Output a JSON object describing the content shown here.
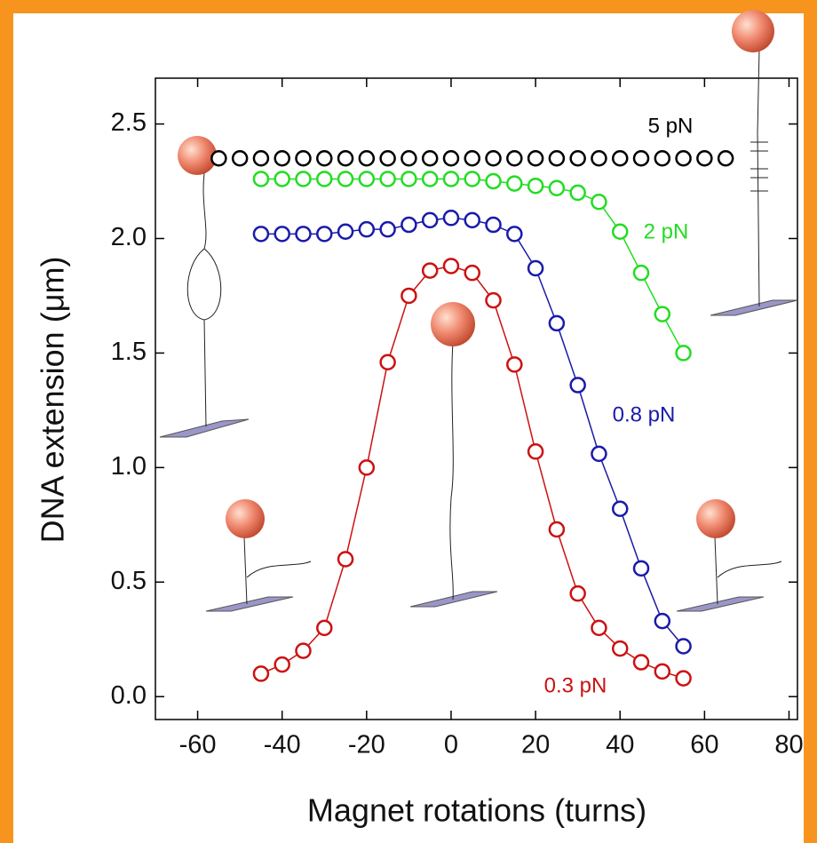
{
  "chart_data": {
    "type": "line",
    "xlabel": "Magnet rotations (turns)",
    "ylabel": "DNA extension (μm)",
    "xlim": [
      -70,
      82
    ],
    "ylim": [
      -0.1,
      2.7
    ],
    "xticks": [
      -60,
      -40,
      -20,
      0,
      20,
      40,
      60,
      80
    ],
    "yticks": [
      {
        "value": 0,
        "label": "0.0"
      },
      0.5,
      {
        "value": 1,
        "label": "1.0"
      },
      1.5,
      {
        "value": 2,
        "label": "2.0"
      },
      2.5
    ],
    "series": [
      {
        "name": "5 pN",
        "color": "#000000",
        "lines": false,
        "x": [
          -55,
          -50,
          -45,
          -40,
          -35,
          -30,
          -25,
          -20,
          -15,
          -10,
          -5,
          0,
          5,
          10,
          15,
          20,
          25,
          30,
          35,
          40,
          45,
          50,
          55,
          60,
          65
        ],
        "values": [
          2.35,
          2.35,
          2.35,
          2.35,
          2.35,
          2.35,
          2.35,
          2.35,
          2.35,
          2.35,
          2.35,
          2.35,
          2.35,
          2.35,
          2.35,
          2.35,
          2.35,
          2.35,
          2.35,
          2.35,
          2.35,
          2.35,
          2.35,
          2.35,
          2.35
        ]
      },
      {
        "name": "2 pN",
        "color": "#22dd22",
        "lines": true,
        "x": [
          -45,
          -40,
          -35,
          -30,
          -25,
          -20,
          -15,
          -10,
          -5,
          0,
          5,
          10,
          15,
          20,
          25,
          30,
          35,
          40,
          45,
          50,
          55
        ],
        "values": [
          2.26,
          2.26,
          2.26,
          2.26,
          2.26,
          2.26,
          2.26,
          2.26,
          2.26,
          2.26,
          2.26,
          2.25,
          2.24,
          2.23,
          2.22,
          2.2,
          2.16,
          2.03,
          1.85,
          1.67,
          1.5
        ]
      },
      {
        "name": "0.8 pN",
        "color": "#1a1aaa",
        "lines": true,
        "x": [
          -45,
          -40,
          -35,
          -30,
          -25,
          -20,
          -15,
          -10,
          -5,
          0,
          5,
          10,
          15,
          20,
          25,
          30,
          35,
          40,
          45,
          50,
          55
        ],
        "values": [
          2.02,
          2.02,
          2.02,
          2.02,
          2.03,
          2.04,
          2.04,
          2.06,
          2.08,
          2.09,
          2.08,
          2.06,
          2.02,
          1.87,
          1.63,
          1.36,
          1.06,
          0.82,
          0.56,
          0.33,
          0.22
        ]
      },
      {
        "name": "0.3 pN",
        "color": "#cc1111",
        "lines": true,
        "x": [
          -45,
          -40,
          -35,
          -30,
          -25,
          -20,
          -15,
          -10,
          -5,
          0,
          5,
          10,
          15,
          20,
          25,
          30,
          35,
          40,
          45,
          50,
          55
        ],
        "values": [
          0.1,
          0.14,
          0.2,
          0.3,
          0.6,
          1.0,
          1.46,
          1.75,
          1.86,
          1.88,
          1.85,
          1.73,
          1.45,
          1.07,
          0.73,
          0.45,
          0.3,
          0.21,
          0.15,
          0.11,
          0.08
        ]
      }
    ]
  }
}
